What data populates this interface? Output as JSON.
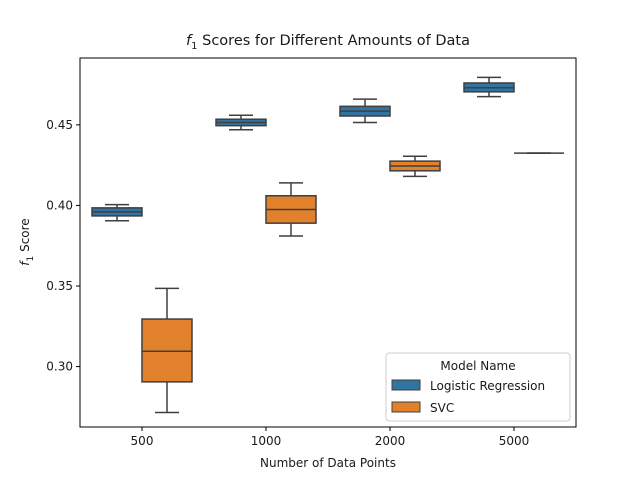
{
  "chart_data": {
    "type": "box",
    "title": {
      "symbol": "f",
      "subscript": "1",
      "rest": " Scores for Different Amounts of Data"
    },
    "xlabel": "Number of Data Points",
    "ylabel": {
      "symbol": "f",
      "subscript": "1",
      "rest": " Score"
    },
    "categories": [
      "500",
      "1000",
      "2000",
      "5000"
    ],
    "ylim": [
      0.2625,
      0.4915
    ],
    "yticks": [
      0.3,
      0.35,
      0.4,
      0.45
    ],
    "ytick_labels": [
      "0.30",
      "0.35",
      "0.40",
      "0.45"
    ],
    "grid": false,
    "legend": {
      "title": "Model Name",
      "placement": "lower-right"
    },
    "series": [
      {
        "name": "Logistic Regression",
        "color": "#3274a1",
        "boxes": [
          {
            "whislo": 0.3905,
            "q1": 0.3935,
            "med": 0.396,
            "q3": 0.3985,
            "whishi": 0.4005
          },
          {
            "whislo": 0.447,
            "q1": 0.4495,
            "med": 0.4515,
            "q3": 0.4535,
            "whishi": 0.456
          },
          {
            "whislo": 0.4515,
            "q1": 0.4555,
            "med": 0.4585,
            "q3": 0.4615,
            "whishi": 0.466
          },
          {
            "whislo": 0.4675,
            "q1": 0.4705,
            "med": 0.473,
            "q3": 0.476,
            "whishi": 0.4795
          }
        ]
      },
      {
        "name": "SVC",
        "color": "#e1812c",
        "boxes": [
          {
            "whislo": 0.2715,
            "q1": 0.2905,
            "med": 0.3095,
            "q3": 0.3295,
            "whishi": 0.3485
          },
          {
            "whislo": 0.381,
            "q1": 0.389,
            "med": 0.3975,
            "q3": 0.406,
            "whishi": 0.414
          },
          {
            "whislo": 0.418,
            "q1": 0.4215,
            "med": 0.4245,
            "q3": 0.4275,
            "whishi": 0.4305
          },
          {
            "whislo": 0.4325,
            "q1": 0.4325,
            "med": 0.4325,
            "q3": 0.4325,
            "whishi": 0.4325
          }
        ]
      }
    ]
  }
}
